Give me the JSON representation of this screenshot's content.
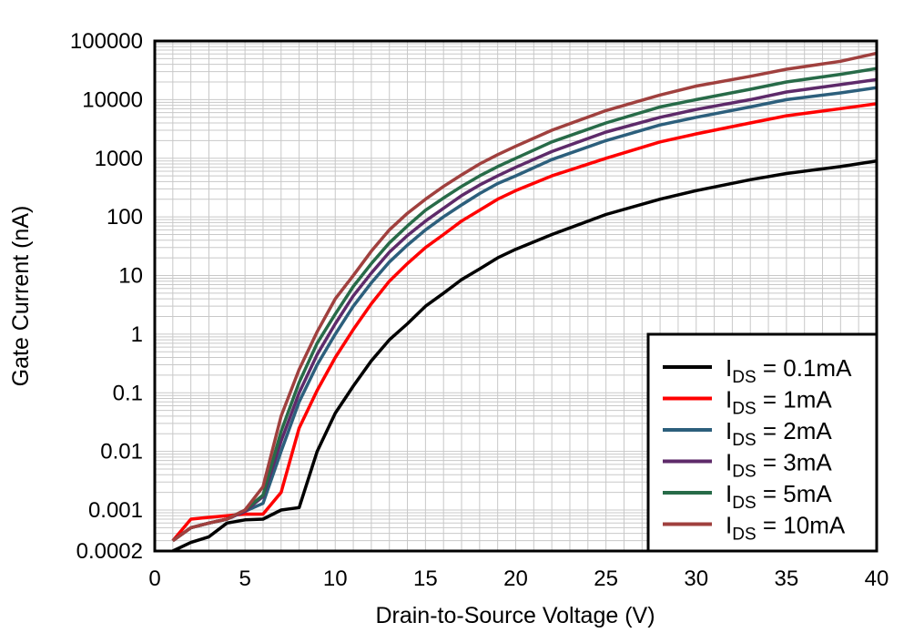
{
  "chart_data": {
    "type": "line",
    "title": "",
    "xlabel": "Drain-to-Source Voltage (V)",
    "ylabel": "Gate Current (nA)",
    "xlim": [
      0,
      40
    ],
    "ylim": [
      0.0002,
      100000
    ],
    "yscale": "log",
    "grid": true,
    "legend_placement": "bottom-right",
    "x_ticks": [
      "0",
      "5",
      "10",
      "15",
      "20",
      "25",
      "30",
      "35",
      "40"
    ],
    "x_tick_values": [
      0,
      5,
      10,
      15,
      20,
      25,
      30,
      35,
      40
    ],
    "y_ticks": [
      "100000",
      "10000",
      "1000",
      "100",
      "10",
      "1",
      "0.1",
      "0.01",
      "0.001",
      "0.0002"
    ],
    "y_tick_values": [
      100000,
      10000,
      1000,
      100,
      10,
      1,
      0.1,
      0.01,
      0.001,
      0.0002
    ],
    "x": [
      1,
      2,
      3,
      4,
      5,
      6,
      7,
      8,
      9,
      10,
      11,
      12,
      13,
      14,
      15,
      16,
      17,
      18,
      19,
      20,
      22,
      25,
      28,
      30,
      33,
      35,
      38,
      40
    ],
    "series": [
      {
        "name_main": "I",
        "name_sub": "DS",
        "name_rest": " = 0.1mA",
        "color": "#000000",
        "values": [
          0.0002,
          0.00028,
          0.00035,
          0.0006,
          0.00068,
          0.0007,
          0.001,
          0.0011,
          0.01,
          0.045,
          0.13,
          0.35,
          0.8,
          1.5,
          3,
          5,
          8.5,
          13,
          20,
          28,
          50,
          110,
          200,
          280,
          430,
          550,
          720,
          900
        ]
      },
      {
        "name_main": "I",
        "name_sub": "DS",
        "name_rest": " = 1mA",
        "color": "#ff0000",
        "values": [
          0.0003,
          0.0007,
          0.00075,
          0.0008,
          0.00085,
          0.00085,
          0.002,
          0.025,
          0.11,
          0.4,
          1.2,
          3.3,
          8,
          16,
          30,
          50,
          85,
          130,
          200,
          280,
          500,
          1000,
          1900,
          2600,
          4000,
          5300,
          7000,
          8500
        ]
      },
      {
        "name_main": "I",
        "name_sub": "DS",
        "name_rest": " = 2mA",
        "color": "#2c5f7c",
        "values": [
          0.0003,
          0.0005,
          0.0006,
          0.0007,
          0.00095,
          0.0013,
          0.01,
          0.07,
          0.3,
          1,
          3,
          7.5,
          17,
          33,
          60,
          100,
          160,
          250,
          370,
          500,
          950,
          2000,
          3700,
          5000,
          7500,
          10000,
          13000,
          16000
        ]
      },
      {
        "name_main": "I",
        "name_sub": "DS",
        "name_rest": " = 3mA",
        "color": "#5e2a6a",
        "values": [
          0.0003,
          0.0005,
          0.0006,
          0.0007,
          0.00095,
          0.0017,
          0.015,
          0.1,
          0.45,
          1.5,
          4.5,
          11,
          25,
          48,
          85,
          140,
          230,
          350,
          500,
          700,
          1300,
          2800,
          5000,
          6800,
          10000,
          13500,
          18000,
          22000
        ]
      },
      {
        "name_main": "I",
        "name_sub": "DS",
        "name_rest": " = 5mA",
        "color": "#276b48",
        "values": [
          0.0003,
          0.0005,
          0.0006,
          0.0007,
          0.001,
          0.0018,
          0.022,
          0.15,
          0.7,
          2.2,
          6.5,
          16,
          36,
          70,
          130,
          210,
          330,
          500,
          720,
          1000,
          1900,
          4000,
          7500,
          10000,
          15000,
          20000,
          27000,
          34000
        ]
      },
      {
        "name_main": "I",
        "name_sub": "DS",
        "name_rest": " = 10mA",
        "color": "#a0403e",
        "values": [
          0.0003,
          0.0005,
          0.0006,
          0.0007,
          0.001,
          0.0025,
          0.04,
          0.25,
          1.1,
          4,
          10,
          26,
          60,
          115,
          200,
          330,
          520,
          800,
          1150,
          1600,
          3000,
          6500,
          12000,
          17000,
          25000,
          33000,
          45000,
          62000
        ]
      }
    ]
  }
}
